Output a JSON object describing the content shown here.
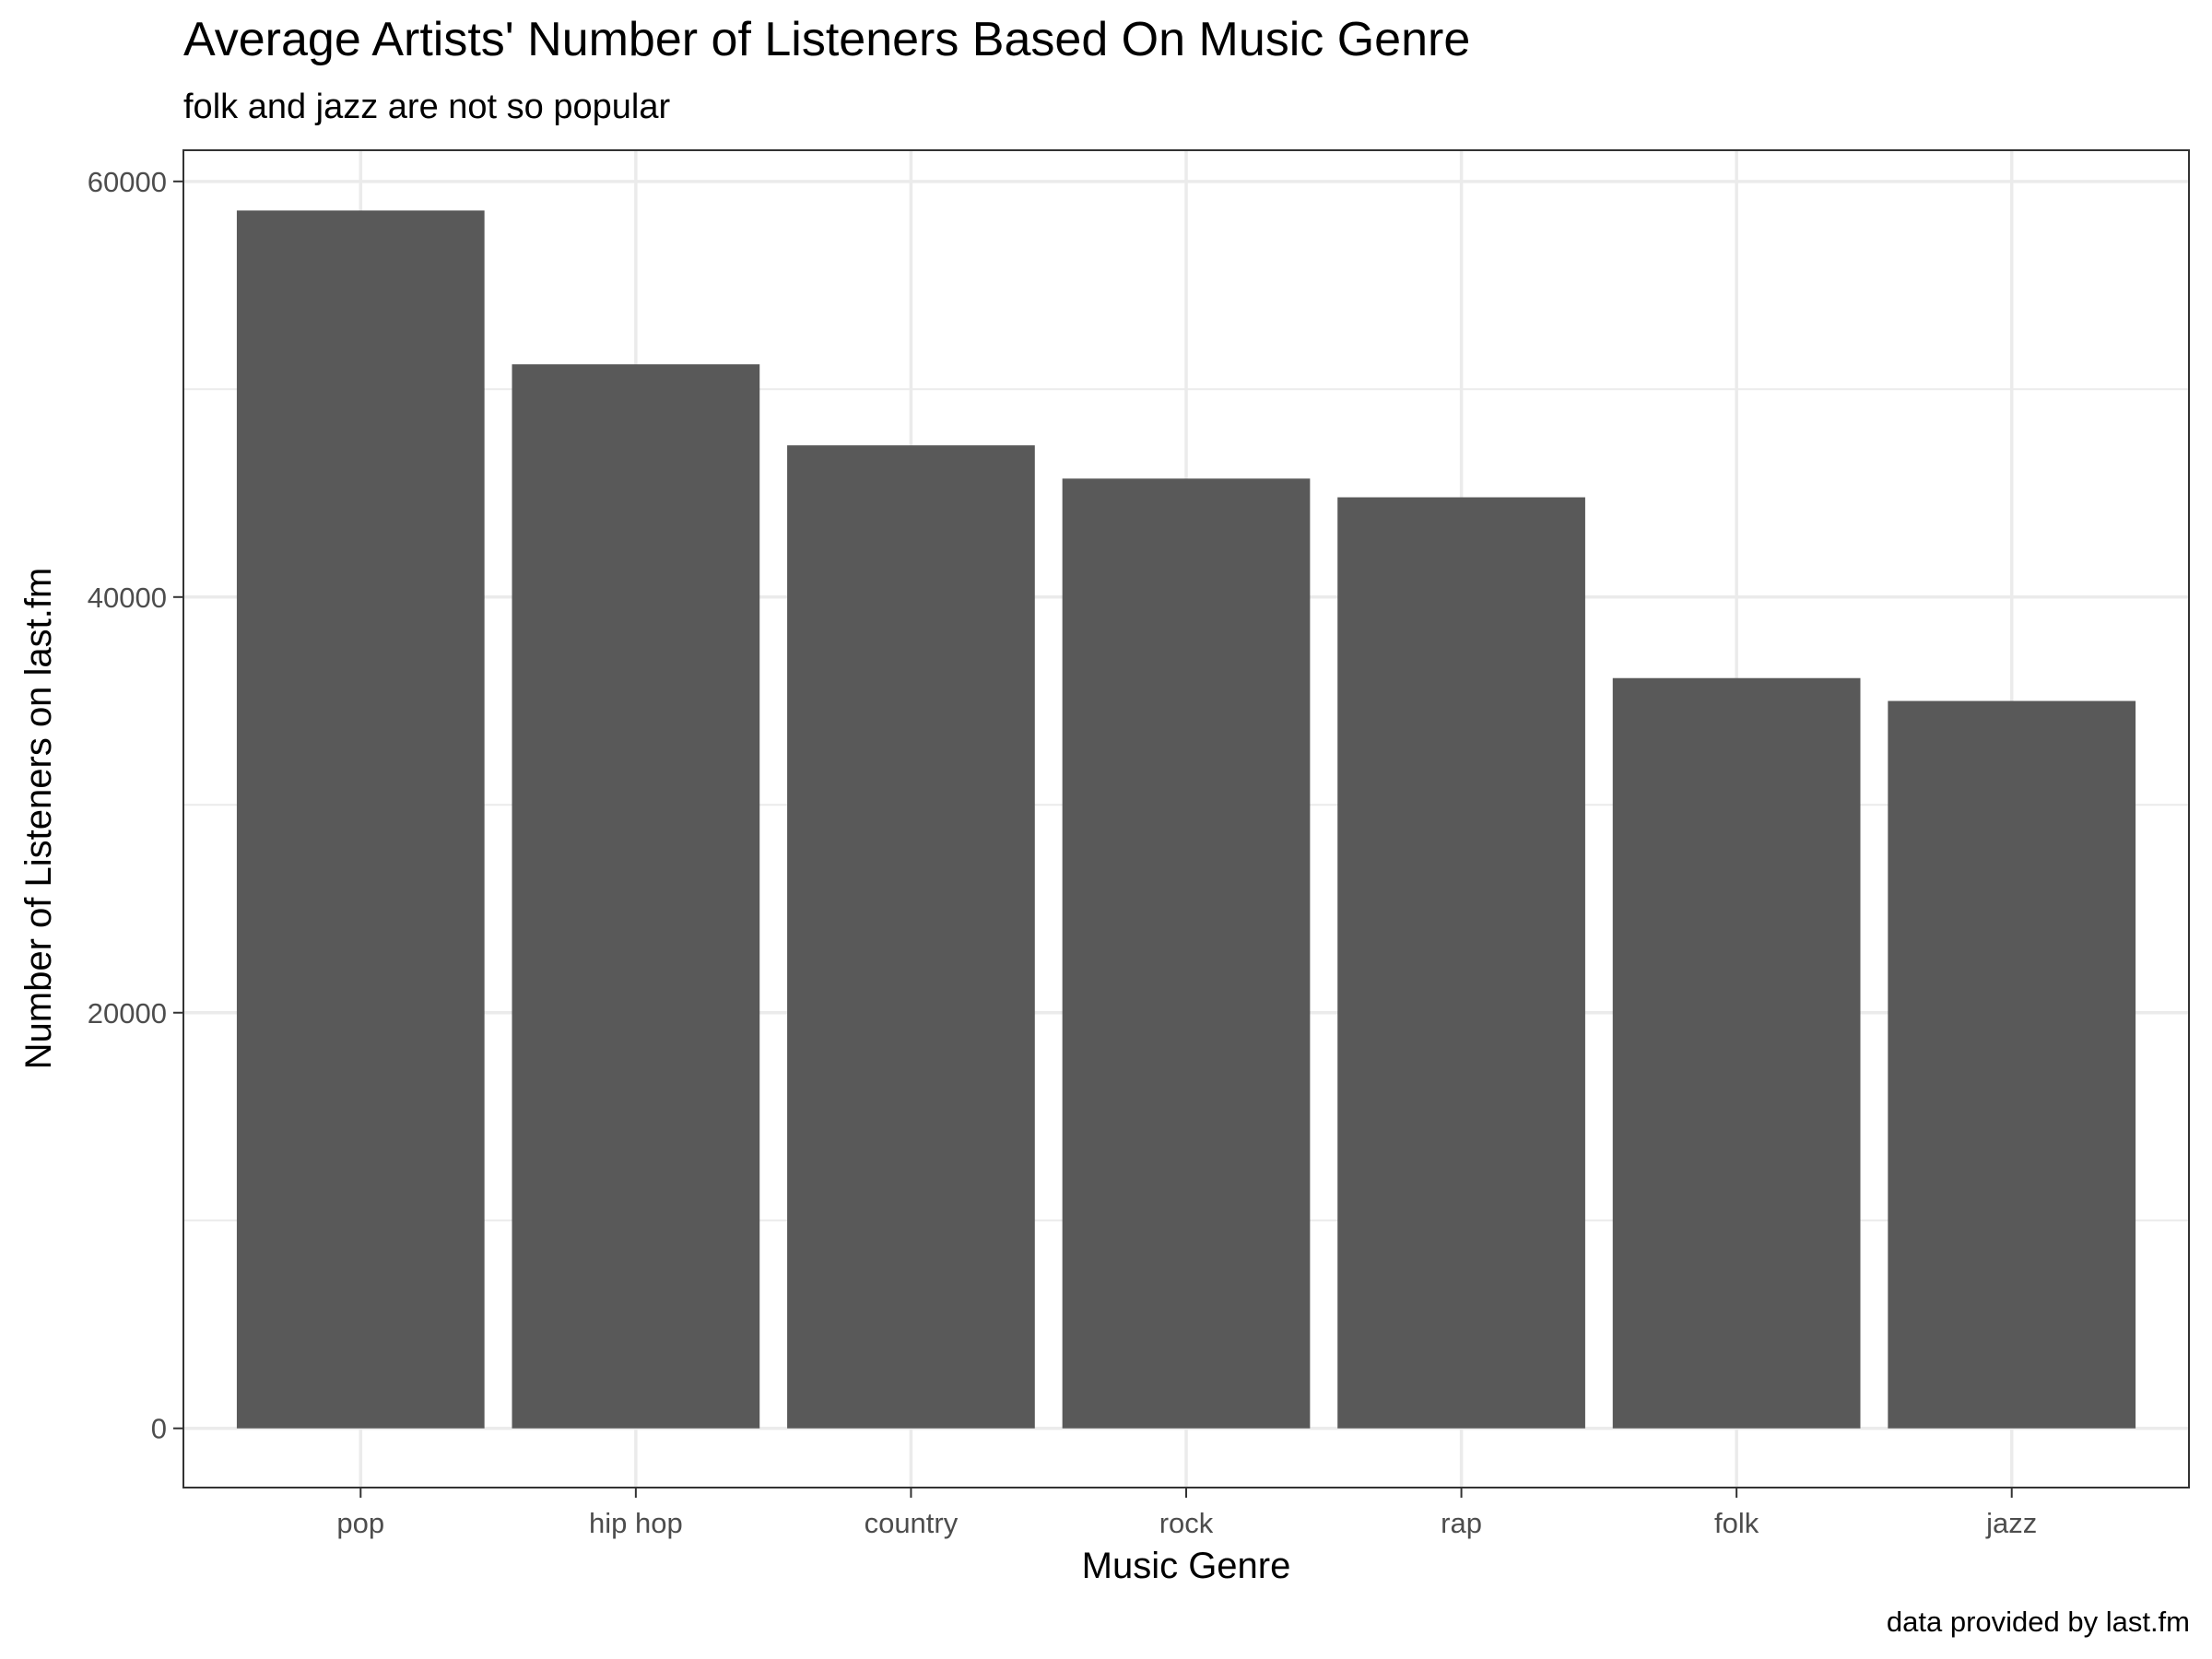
{
  "chart_data": {
    "type": "bar",
    "title": "Average Artists' Number of Listeners Based On Music Genre",
    "subtitle": "folk and jazz are not so popular",
    "caption": "data provided by last.fm",
    "xlabel": "Music Genre",
    "ylabel": "Number of Listeners on last.fm",
    "categories": [
      "pop",
      "hip hop",
      "country",
      "rock",
      "rap",
      "folk",
      "jazz"
    ],
    "values": [
      58600,
      51200,
      47300,
      45700,
      44800,
      36100,
      35000
    ],
    "ylim": [
      -2850,
      61500
    ],
    "yticks": [
      0,
      20000,
      40000,
      60000
    ],
    "ytick_labels": [
      "0",
      "20000",
      "40000",
      "60000"
    ],
    "minor_yticks": [
      10000,
      30000,
      50000
    ],
    "grid": true,
    "colors": {
      "bar": "#595959",
      "grid": "#ebebeb",
      "panel_border": "#333333",
      "background": "#ffffff"
    }
  }
}
